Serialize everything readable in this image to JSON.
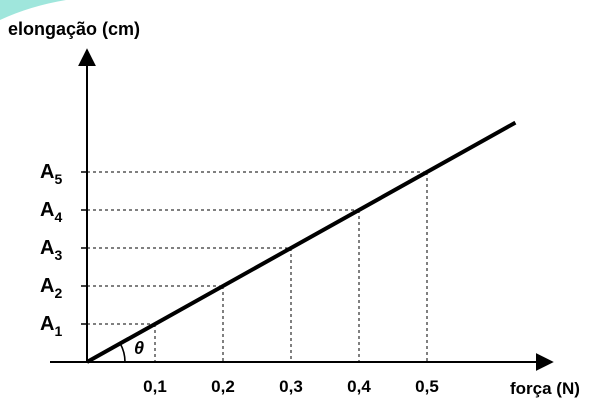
{
  "chart_data": {
    "type": "line",
    "ylabel": "elongação (cm)",
    "xlabel": "força (N)",
    "x_ticks": [
      "0,1",
      "0,2",
      "0,3",
      "0,4",
      "0,5"
    ],
    "y_ticks": [
      {
        "base": "A",
        "sub": "1"
      },
      {
        "base": "A",
        "sub": "2"
      },
      {
        "base": "A",
        "sub": "3"
      },
      {
        "base": "A",
        "sub": "4"
      },
      {
        "base": "A",
        "sub": "5"
      }
    ],
    "angle_label": "θ",
    "series": [
      {
        "x": [
          0,
          0.1,
          0.2,
          0.3,
          0.4,
          0.5
        ],
        "y": [
          0,
          1,
          2,
          3,
          4,
          5
        ]
      }
    ],
    "xlim": [
      0,
      0.63
    ],
    "ylim": [
      0,
      6.4
    ],
    "grid": "dashed projection lines to axes"
  },
  "colors": {
    "line": "#000000",
    "axes": "#000000",
    "decor": "#5fd6c4"
  }
}
